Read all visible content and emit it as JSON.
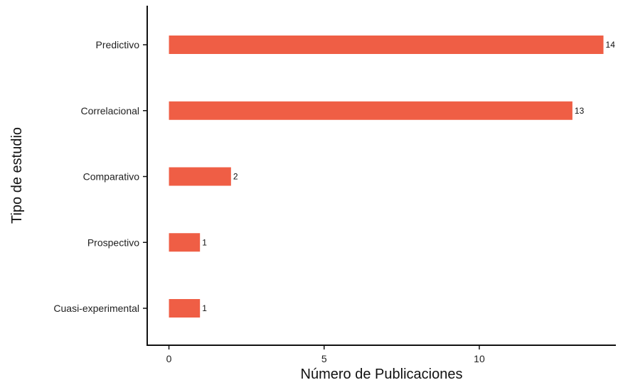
{
  "chart_data": {
    "type": "bar",
    "orientation": "horizontal",
    "categories": [
      "Predictivo",
      "Correlacional",
      "Comparativo",
      "Prospectivo",
      "Cuasi-experimental"
    ],
    "values": [
      14,
      13,
      2,
      1,
      1
    ],
    "data_labels": [
      "14",
      "13",
      "2",
      "1",
      "1"
    ],
    "xlabel": "Número de Publicaciones",
    "ylabel": "Tipo de estudio",
    "xticks": [
      0,
      5,
      10
    ],
    "xlim": [
      -0.7,
      14.4
    ],
    "grid": false,
    "bar_color": "#ef5e45"
  }
}
